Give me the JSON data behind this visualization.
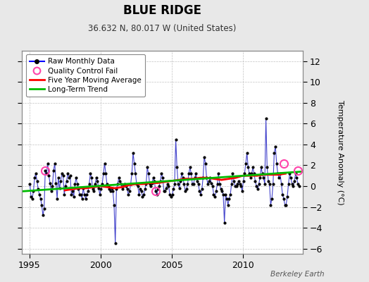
{
  "title": "BLUE RIDGE",
  "subtitle": "36.632 N, 80.017 W (United States)",
  "ylabel_right": "Temperature Anomaly (°C)",
  "attribution": "Berkeley Earth",
  "xlim": [
    1994.5,
    2014.2
  ],
  "ylim": [
    -6.5,
    13.0
  ],
  "yticks": [
    -6,
    -4,
    -2,
    0,
    2,
    4,
    6,
    8,
    10,
    12
  ],
  "xticks": [
    1995,
    2000,
    2005,
    2010
  ],
  "bg_color": "#e8e8e8",
  "plot_bg_color": "#ffffff",
  "raw_line_color": "#4444cc",
  "raw_dot_color": "#000000",
  "qc_fail_color": "#ff44aa",
  "moving_avg_color": "#ff0000",
  "trend_color": "#00bb00",
  "raw_data_x": [
    1995.042,
    1995.125,
    1995.208,
    1995.292,
    1995.375,
    1995.458,
    1995.542,
    1995.625,
    1995.708,
    1995.792,
    1995.875,
    1995.958,
    1996.042,
    1996.125,
    1996.208,
    1996.292,
    1996.375,
    1996.458,
    1996.542,
    1996.625,
    1996.708,
    1996.792,
    1996.875,
    1996.958,
    1997.042,
    1997.125,
    1997.208,
    1997.292,
    1997.375,
    1997.458,
    1997.542,
    1997.625,
    1997.708,
    1997.792,
    1997.875,
    1997.958,
    1998.042,
    1998.125,
    1998.208,
    1998.292,
    1998.375,
    1998.458,
    1998.542,
    1998.625,
    1998.708,
    1998.792,
    1998.875,
    1998.958,
    1999.042,
    1999.125,
    1999.208,
    1999.292,
    1999.375,
    1999.458,
    1999.542,
    1999.625,
    1999.708,
    1999.792,
    1999.875,
    1999.958,
    2000.042,
    2000.125,
    2000.208,
    2000.292,
    2000.375,
    2000.458,
    2000.542,
    2000.625,
    2000.708,
    2000.792,
    2000.875,
    2000.958,
    2001.042,
    2001.125,
    2001.208,
    2001.292,
    2001.375,
    2001.458,
    2001.542,
    2001.625,
    2001.708,
    2001.792,
    2001.875,
    2001.958,
    2002.042,
    2002.125,
    2002.208,
    2002.292,
    2002.375,
    2002.458,
    2002.542,
    2002.625,
    2002.708,
    2002.792,
    2002.875,
    2002.958,
    2003.042,
    2003.125,
    2003.208,
    2003.292,
    2003.375,
    2003.458,
    2003.542,
    2003.625,
    2003.708,
    2003.792,
    2003.875,
    2003.958,
    2004.042,
    2004.125,
    2004.208,
    2004.292,
    2004.375,
    2004.458,
    2004.542,
    2004.625,
    2004.708,
    2004.792,
    2004.875,
    2004.958,
    2005.042,
    2005.125,
    2005.208,
    2005.292,
    2005.375,
    2005.458,
    2005.542,
    2005.625,
    2005.708,
    2005.792,
    2005.875,
    2005.958,
    2006.042,
    2006.125,
    2006.208,
    2006.292,
    2006.375,
    2006.458,
    2006.542,
    2006.625,
    2006.708,
    2006.792,
    2006.875,
    2006.958,
    2007.042,
    2007.125,
    2007.208,
    2007.292,
    2007.375,
    2007.458,
    2007.542,
    2007.625,
    2007.708,
    2007.792,
    2007.875,
    2007.958,
    2008.042,
    2008.125,
    2008.208,
    2008.292,
    2008.375,
    2008.458,
    2008.542,
    2008.625,
    2008.708,
    2008.792,
    2008.875,
    2008.958,
    2009.042,
    2009.125,
    2009.208,
    2009.292,
    2009.375,
    2009.458,
    2009.542,
    2009.625,
    2009.708,
    2009.792,
    2009.875,
    2009.958,
    2010.042,
    2010.125,
    2010.208,
    2010.292,
    2010.375,
    2010.458,
    2010.542,
    2010.625,
    2010.708,
    2010.792,
    2010.875,
    2010.958,
    2011.042,
    2011.125,
    2011.208,
    2011.292,
    2011.375,
    2011.458,
    2011.542,
    2011.625,
    2011.708,
    2011.792,
    2011.875,
    2011.958,
    2012.042,
    2012.125,
    2012.208,
    2012.292,
    2012.375,
    2012.458,
    2012.542,
    2012.625,
    2012.708,
    2012.792,
    2012.875,
    2012.958,
    2013.042,
    2013.125,
    2013.208,
    2013.292,
    2013.375,
    2013.458,
    2013.542,
    2013.625,
    2013.708,
    2013.792,
    2013.875,
    2013.958
  ],
  "raw_data_y": [
    0.2,
    -1.0,
    -1.2,
    -0.5,
    0.8,
    1.2,
    0.5,
    -0.3,
    -0.8,
    -1.2,
    -1.8,
    -2.8,
    -2.2,
    1.5,
    1.2,
    2.2,
    1.0,
    0.3,
    -0.5,
    0.0,
    1.5,
    2.2,
    0.3,
    -1.2,
    0.8,
    -0.2,
    0.5,
    1.2,
    1.0,
    -0.8,
    0.0,
    0.5,
    1.2,
    0.8,
    1.0,
    -0.8,
    -0.5,
    -1.0,
    0.2,
    0.8,
    0.2,
    -0.3,
    -0.8,
    -0.8,
    -1.2,
    -0.2,
    -0.8,
    -1.2,
    -0.8,
    -0.5,
    0.2,
    1.2,
    0.8,
    -0.3,
    -0.5,
    0.2,
    0.8,
    0.5,
    -0.2,
    -0.8,
    -0.3,
    0.2,
    1.2,
    2.2,
    1.2,
    0.2,
    0.0,
    -0.3,
    -0.5,
    -0.2,
    -0.5,
    -1.8,
    -5.5,
    -0.3,
    0.2,
    0.8,
    0.5,
    0.2,
    -0.3,
    0.0,
    0.2,
    0.0,
    -0.3,
    -0.8,
    -0.5,
    0.2,
    1.2,
    3.2,
    2.2,
    1.2,
    0.2,
    0.0,
    -0.8,
    -0.3,
    -0.5,
    -1.0,
    -0.8,
    -0.3,
    0.2,
    1.8,
    1.2,
    0.2,
    0.0,
    0.3,
    0.8,
    0.5,
    -0.5,
    -0.8,
    -0.3,
    0.0,
    0.5,
    1.2,
    0.8,
    -0.5,
    -0.5,
    -0.2,
    0.2,
    0.0,
    -0.8,
    -1.0,
    -0.8,
    -0.3,
    0.2,
    4.5,
    1.8,
    0.2,
    -0.2,
    0.5,
    1.2,
    0.8,
    0.2,
    -0.5,
    -0.3,
    0.2,
    1.2,
    1.8,
    1.2,
    0.2,
    0.2,
    0.8,
    1.2,
    0.5,
    0.2,
    -0.5,
    -0.8,
    -0.3,
    0.8,
    2.8,
    2.2,
    0.8,
    0.2,
    0.5,
    0.8,
    0.3,
    0.0,
    -0.8,
    -1.0,
    -0.5,
    0.2,
    1.2,
    0.2,
    -0.3,
    -0.5,
    -0.8,
    -3.5,
    -0.8,
    -1.2,
    -1.8,
    -1.2,
    -0.8,
    0.2,
    1.2,
    0.5,
    0.0,
    0.0,
    0.2,
    0.5,
    0.2,
    0.0,
    -0.5,
    0.5,
    1.2,
    2.2,
    3.2,
    1.8,
    1.2,
    0.8,
    1.2,
    1.8,
    1.2,
    0.5,
    0.0,
    -0.3,
    0.2,
    0.8,
    1.8,
    1.2,
    0.8,
    0.2,
    6.5,
    1.8,
    0.5,
    0.2,
    -1.8,
    -1.2,
    0.2,
    3.2,
    3.8,
    2.2,
    1.2,
    0.8,
    1.2,
    0.2,
    -0.8,
    -1.2,
    -1.8,
    -1.8,
    -1.0,
    0.2,
    1.2,
    0.8,
    0.2,
    0.0,
    0.5,
    1.2,
    0.8,
    0.2,
    0.0
  ],
  "qc_fail_points": [
    [
      1996.125,
      1.5
    ],
    [
      2003.875,
      -0.5
    ],
    [
      2012.875,
      2.2
    ],
    [
      2013.875,
      1.5
    ]
  ],
  "moving_avg_x": [
    1997.5,
    1998.0,
    1998.5,
    1999.0,
    1999.5,
    2000.0,
    2000.5,
    2001.0,
    2001.5,
    2002.0,
    2002.5,
    2003.0,
    2003.5,
    2004.0,
    2004.5,
    2005.0,
    2005.5,
    2006.0,
    2006.5,
    2007.0,
    2007.5,
    2008.0,
    2008.5,
    2009.0,
    2009.5,
    2010.0,
    2010.5,
    2011.0,
    2011.5,
    2012.0,
    2012.5,
    2013.0
  ],
  "moving_avg_y": [
    -0.4,
    -0.3,
    -0.2,
    -0.2,
    -0.1,
    0.0,
    -0.1,
    -0.2,
    -0.1,
    0.1,
    0.2,
    0.2,
    0.3,
    0.3,
    0.4,
    0.5,
    0.6,
    0.7,
    0.7,
    0.8,
    0.8,
    0.7,
    0.6,
    0.7,
    0.8,
    1.0,
    1.0,
    1.0,
    1.1,
    1.1,
    1.1,
    1.2
  ],
  "trend_x": [
    1994.5,
    2014.2
  ],
  "trend_y": [
    -0.5,
    1.4
  ],
  "legend_items": [
    {
      "label": "Raw Monthly Data",
      "color": "#0000ff",
      "type": "line_dot"
    },
    {
      "label": "Quality Control Fail",
      "color": "#ff44aa",
      "type": "circle"
    },
    {
      "label": "Five Year Moving Average",
      "color": "#ff0000",
      "type": "line"
    },
    {
      "label": "Long-Term Trend",
      "color": "#00bb00",
      "type": "line"
    }
  ]
}
